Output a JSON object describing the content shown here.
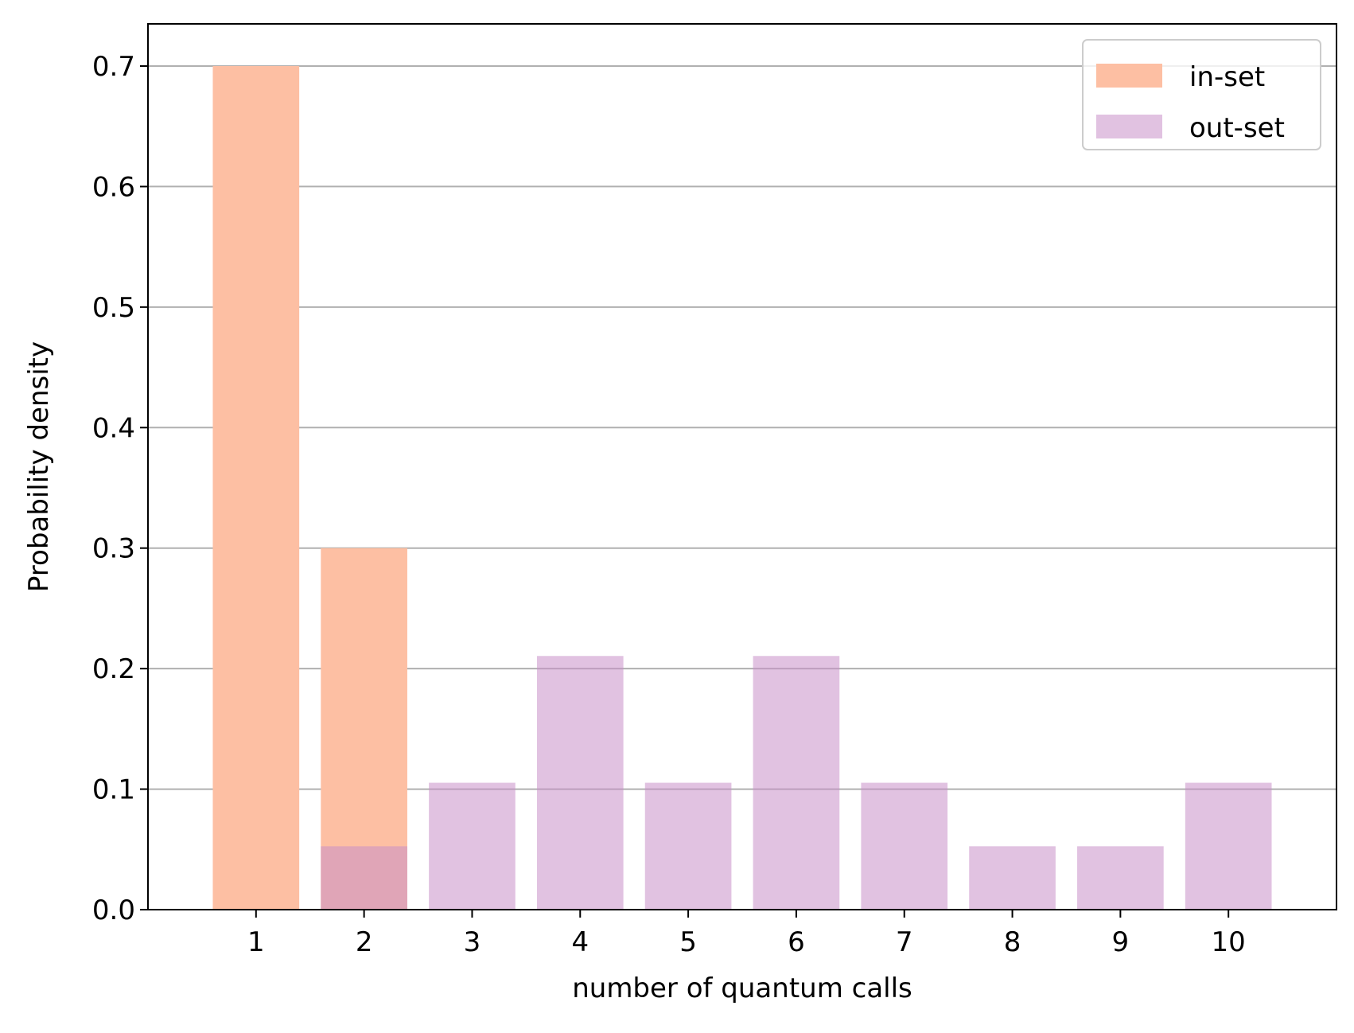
{
  "chart_data": {
    "type": "bar",
    "title": "",
    "xlabel": "number of quantum calls",
    "ylabel": "Probability density",
    "x": [
      1,
      2,
      3,
      4,
      5,
      6,
      7,
      8,
      9,
      10
    ],
    "xlim": [
      0,
      11
    ],
    "ylim": [
      0,
      0.735
    ],
    "yticks": [
      0.0,
      0.1,
      0.2,
      0.3,
      0.4,
      0.5,
      0.6,
      0.7
    ],
    "ytick_labels": [
      "0.0",
      "0.1",
      "0.2",
      "0.3",
      "0.4",
      "0.5",
      "0.6",
      "0.7"
    ],
    "xtick_labels": [
      "1",
      "2",
      "3",
      "4",
      "5",
      "6",
      "7",
      "8",
      "9",
      "10"
    ],
    "grid": "y-major",
    "legend_position": "top-right",
    "bar_width": 0.8,
    "series": [
      {
        "name": "in-set",
        "color": "#fdbfa3",
        "values": [
          0.7,
          0.3,
          0,
          0,
          0,
          0,
          0,
          0,
          0,
          0
        ]
      },
      {
        "name": "out-set",
        "color": "#c88fc8",
        "opacity": 0.55,
        "values": [
          0,
          0.0526,
          0.1053,
          0.2105,
          0.1053,
          0.2105,
          0.1053,
          0.0526,
          0.0526,
          0.1053
        ]
      }
    ]
  }
}
